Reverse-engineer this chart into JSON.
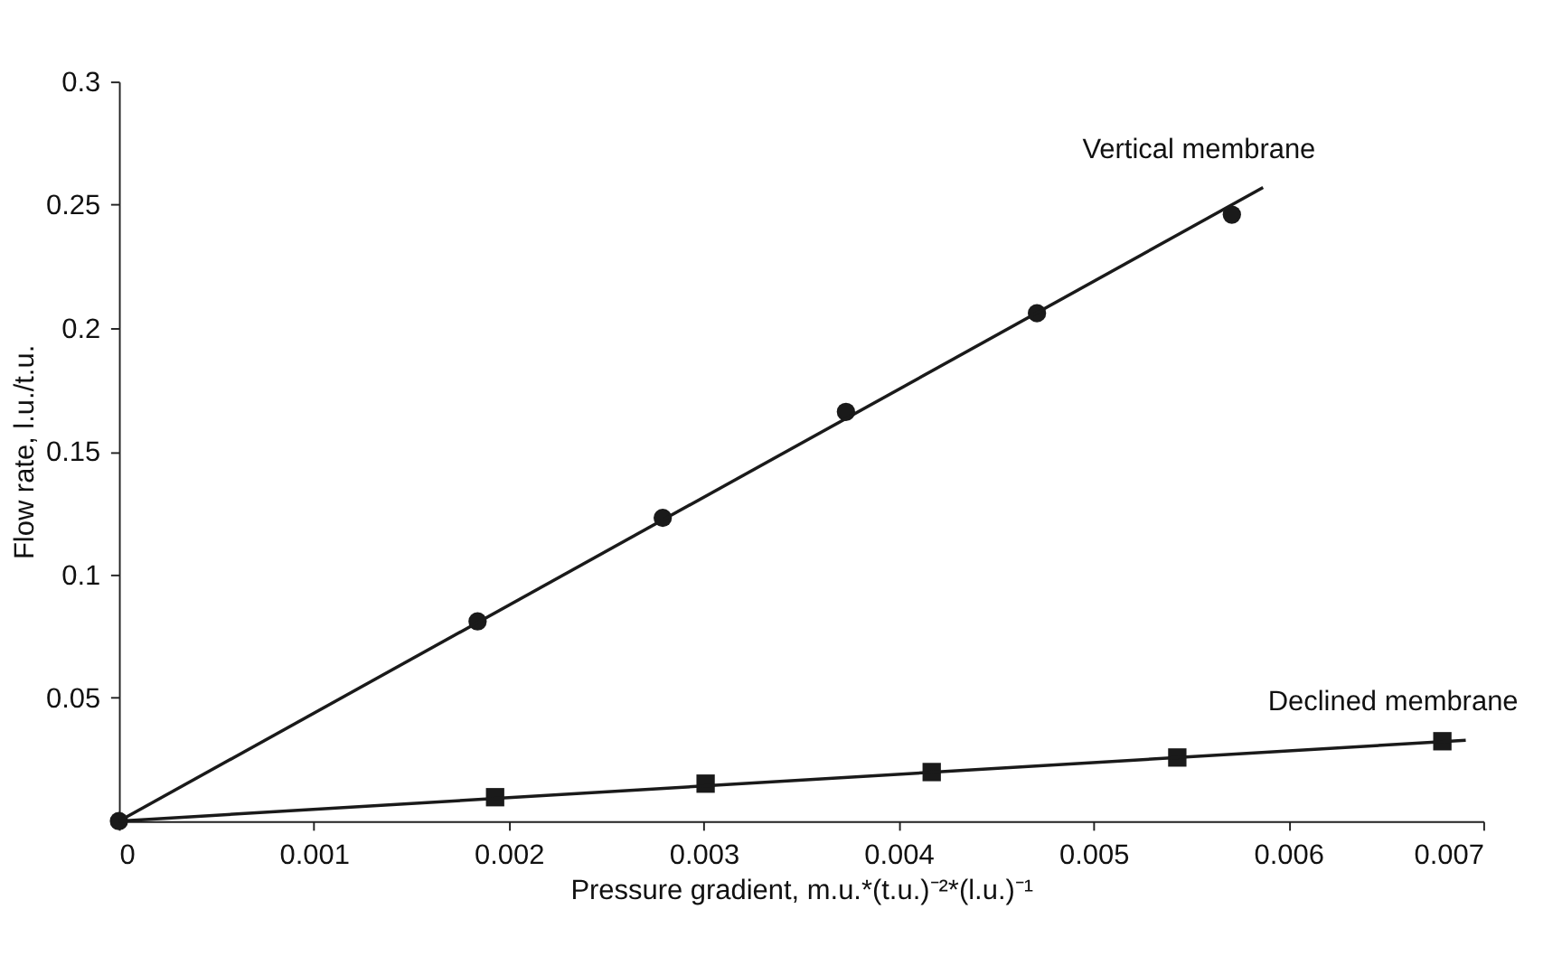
{
  "chart_data": {
    "type": "scatter",
    "xlabel": "Pressure gradient, m.u.*(t.u.)⁻²*(l.u.)⁻¹",
    "ylabel": "Flow rate, l.u./t.u.",
    "xlim": [
      0,
      0.007
    ],
    "xticks": [
      0,
      0.001,
      0.002,
      0.003,
      0.004,
      0.005,
      0.006,
      0.007
    ],
    "ylim": [
      0,
      0.3
    ],
    "yticks": [
      {
        "value": 0,
        "label": null
      },
      0.05,
      0.1,
      0.15,
      0.2,
      0.25,
      0.3
    ],
    "grid": false,
    "legend": false,
    "line_style": "solid",
    "series": [
      {
        "name": "Vertical membrane",
        "marker": "circle",
        "color": "#1a1a1a",
        "x": [
          0,
          0.00184,
          0.00279,
          0.00373,
          0.00471,
          0.00571
        ],
        "values": [
          0,
          0.081,
          0.123,
          0.166,
          0.206,
          0.246
        ]
      },
      {
        "type": "line",
        "marker": "none",
        "color": "#1a1a1a",
        "x": [
          0,
          0.00587
        ],
        "values": [
          0,
          0.257
        ]
      },
      {
        "name": "Declined membrane",
        "marker": "square",
        "color": "#1a1a1a",
        "x": [
          0.00193,
          0.00301,
          0.00417,
          0.00543,
          0.00679
        ],
        "values": [
          0.0097,
          0.0152,
          0.0199,
          0.0258,
          0.0324
        ]
      },
      {
        "type": "line",
        "marker": "none",
        "color": "#1a1a1a",
        "x": [
          0,
          0.00691
        ],
        "values": [
          0,
          0.0328
        ]
      }
    ]
  }
}
